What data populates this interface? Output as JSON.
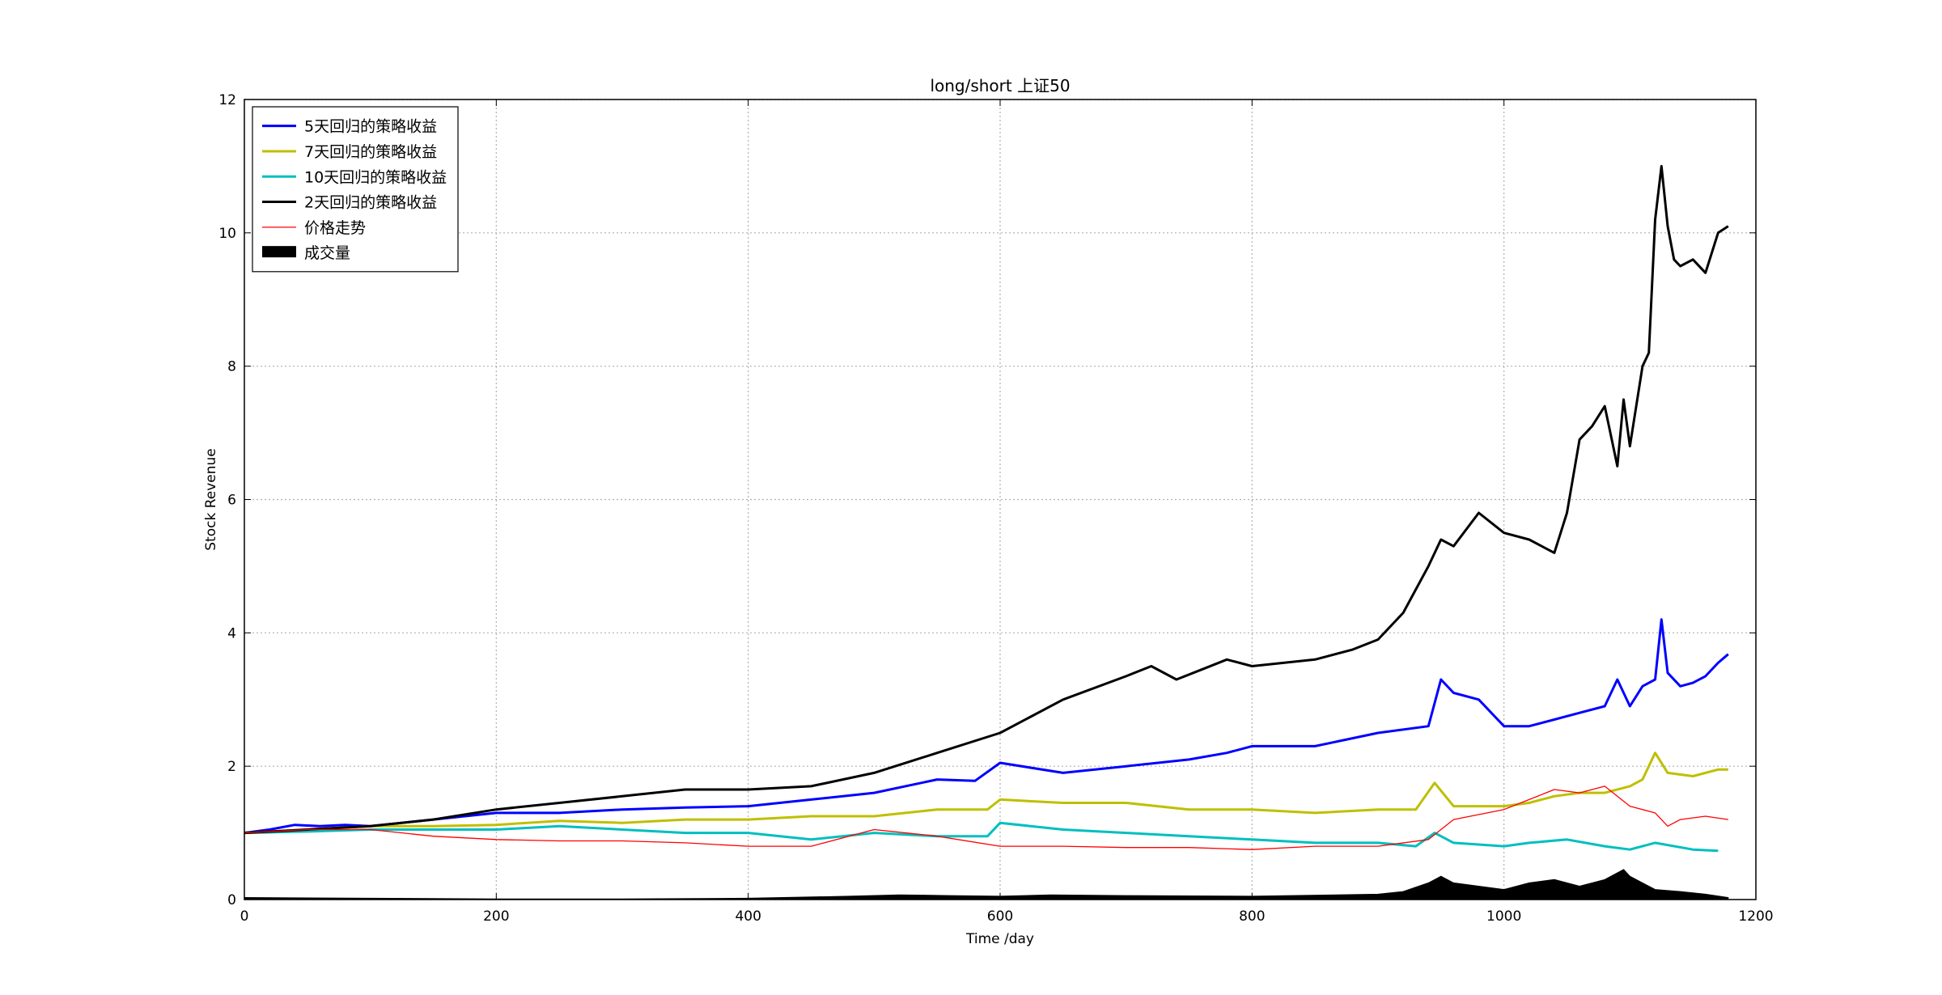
{
  "chart_data": {
    "type": "line",
    "title": "long/short 上证50",
    "xlabel": "Time /day",
    "ylabel": "Stock Revenue",
    "xlim": [
      0,
      1200
    ],
    "ylim": [
      0,
      12
    ],
    "xticks": [
      0,
      200,
      400,
      600,
      800,
      1000,
      1200
    ],
    "yticks": [
      0,
      2,
      4,
      6,
      8,
      10,
      12
    ],
    "grid": true,
    "legend_position": "top-left",
    "series": [
      {
        "name": "5天回归的策略收益",
        "color": "#0000ff",
        "style": "thick-line",
        "x": [
          0,
          20,
          40,
          60,
          80,
          100,
          150,
          200,
          250,
          300,
          350,
          400,
          450,
          500,
          550,
          580,
          600,
          650,
          700,
          750,
          780,
          800,
          850,
          900,
          940,
          950,
          960,
          980,
          1000,
          1020,
          1040,
          1060,
          1080,
          1090,
          1100,
          1110,
          1120,
          1125,
          1130,
          1140,
          1150,
          1160,
          1170,
          1178
        ],
        "y": [
          1.0,
          1.05,
          1.12,
          1.1,
          1.12,
          1.1,
          1.2,
          1.3,
          1.3,
          1.35,
          1.38,
          1.4,
          1.5,
          1.6,
          1.8,
          1.78,
          2.05,
          1.9,
          2.0,
          2.1,
          2.2,
          2.3,
          2.3,
          2.5,
          2.6,
          3.3,
          3.1,
          3.0,
          2.6,
          2.6,
          2.7,
          2.8,
          2.9,
          3.3,
          2.9,
          3.2,
          3.3,
          4.2,
          3.4,
          3.2,
          3.25,
          3.35,
          3.55,
          3.68
        ]
      },
      {
        "name": "7天回归的策略收益",
        "color": "#bfbf00",
        "style": "thick-line",
        "x": [
          0,
          50,
          100,
          150,
          200,
          250,
          300,
          350,
          400,
          450,
          500,
          550,
          590,
          600,
          650,
          700,
          750,
          800,
          850,
          900,
          930,
          945,
          960,
          980,
          1000,
          1020,
          1040,
          1060,
          1080,
          1100,
          1110,
          1120,
          1130,
          1150,
          1170,
          1178
        ],
        "y": [
          1.0,
          1.05,
          1.1,
          1.1,
          1.12,
          1.18,
          1.15,
          1.2,
          1.2,
          1.25,
          1.25,
          1.35,
          1.35,
          1.5,
          1.45,
          1.45,
          1.35,
          1.35,
          1.3,
          1.35,
          1.35,
          1.75,
          1.4,
          1.4,
          1.4,
          1.45,
          1.55,
          1.6,
          1.6,
          1.7,
          1.8,
          2.2,
          1.9,
          1.85,
          1.95,
          1.95
        ]
      },
      {
        "name": "10天回归的策略收益",
        "color": "#00bfbf",
        "style": "thick-line",
        "x": [
          0,
          50,
          100,
          150,
          200,
          250,
          300,
          350,
          400,
          450,
          500,
          550,
          590,
          600,
          650,
          700,
          750,
          800,
          850,
          900,
          930,
          945,
          960,
          1000,
          1020,
          1050,
          1080,
          1100,
          1120,
          1150,
          1170
        ],
        "y": [
          1.0,
          1.02,
          1.05,
          1.05,
          1.05,
          1.1,
          1.05,
          1.0,
          1.0,
          0.9,
          1.0,
          0.95,
          0.95,
          1.15,
          1.05,
          1.0,
          0.95,
          0.9,
          0.85,
          0.85,
          0.8,
          1.0,
          0.85,
          0.8,
          0.85,
          0.9,
          0.8,
          0.75,
          0.85,
          0.75,
          0.73
        ]
      },
      {
        "name": "2天回归的策略收益",
        "color": "#000000",
        "style": "thick-line",
        "x": [
          0,
          50,
          100,
          150,
          200,
          250,
          300,
          350,
          400,
          450,
          500,
          550,
          600,
          650,
          700,
          720,
          740,
          760,
          780,
          800,
          850,
          880,
          900,
          920,
          940,
          950,
          960,
          980,
          1000,
          1020,
          1040,
          1050,
          1060,
          1070,
          1080,
          1090,
          1095,
          1100,
          1110,
          1115,
          1120,
          1125,
          1130,
          1135,
          1140,
          1150,
          1160,
          1170,
          1178
        ],
        "y": [
          1.0,
          1.05,
          1.1,
          1.2,
          1.35,
          1.45,
          1.55,
          1.65,
          1.65,
          1.7,
          1.9,
          2.2,
          2.5,
          3.0,
          3.35,
          3.5,
          3.3,
          3.45,
          3.6,
          3.5,
          3.6,
          3.75,
          3.9,
          4.3,
          5.0,
          5.4,
          5.3,
          5.8,
          5.5,
          5.4,
          5.2,
          5.8,
          6.9,
          7.1,
          7.4,
          6.5,
          7.5,
          6.8,
          8.0,
          8.2,
          10.2,
          11.0,
          10.1,
          9.6,
          9.5,
          9.6,
          9.4,
          10.0,
          10.1
        ]
      },
      {
        "name": "价格走势",
        "color": "#ff0000",
        "style": "thin-line",
        "x": [
          0,
          50,
          100,
          150,
          200,
          250,
          300,
          350,
          400,
          450,
          500,
          550,
          600,
          650,
          700,
          750,
          800,
          850,
          900,
          940,
          960,
          1000,
          1020,
          1040,
          1060,
          1080,
          1100,
          1120,
          1130,
          1140,
          1160,
          1178
        ],
        "y": [
          1.0,
          1.05,
          1.05,
          0.95,
          0.9,
          0.88,
          0.88,
          0.85,
          0.8,
          0.8,
          1.05,
          0.95,
          0.8,
          0.8,
          0.78,
          0.78,
          0.75,
          0.8,
          0.8,
          0.9,
          1.2,
          1.35,
          1.5,
          1.65,
          1.6,
          1.7,
          1.4,
          1.3,
          1.1,
          1.2,
          1.25,
          1.2
        ]
      },
      {
        "name": "成交量",
        "color": "#000000",
        "style": "filled-area",
        "x": [
          0,
          100,
          200,
          300,
          400,
          480,
          520,
          560,
          600,
          640,
          700,
          800,
          900,
          920,
          940,
          950,
          960,
          980,
          1000,
          1020,
          1040,
          1060,
          1080,
          1095,
          1100,
          1120,
          1140,
          1160,
          1178
        ],
        "y": [
          0.03,
          0.02,
          0.01,
          0.01,
          0.02,
          0.05,
          0.07,
          0.06,
          0.05,
          0.07,
          0.06,
          0.05,
          0.08,
          0.12,
          0.25,
          0.35,
          0.25,
          0.2,
          0.15,
          0.25,
          0.3,
          0.2,
          0.3,
          0.45,
          0.35,
          0.15,
          0.12,
          0.08,
          0.03
        ]
      }
    ]
  }
}
